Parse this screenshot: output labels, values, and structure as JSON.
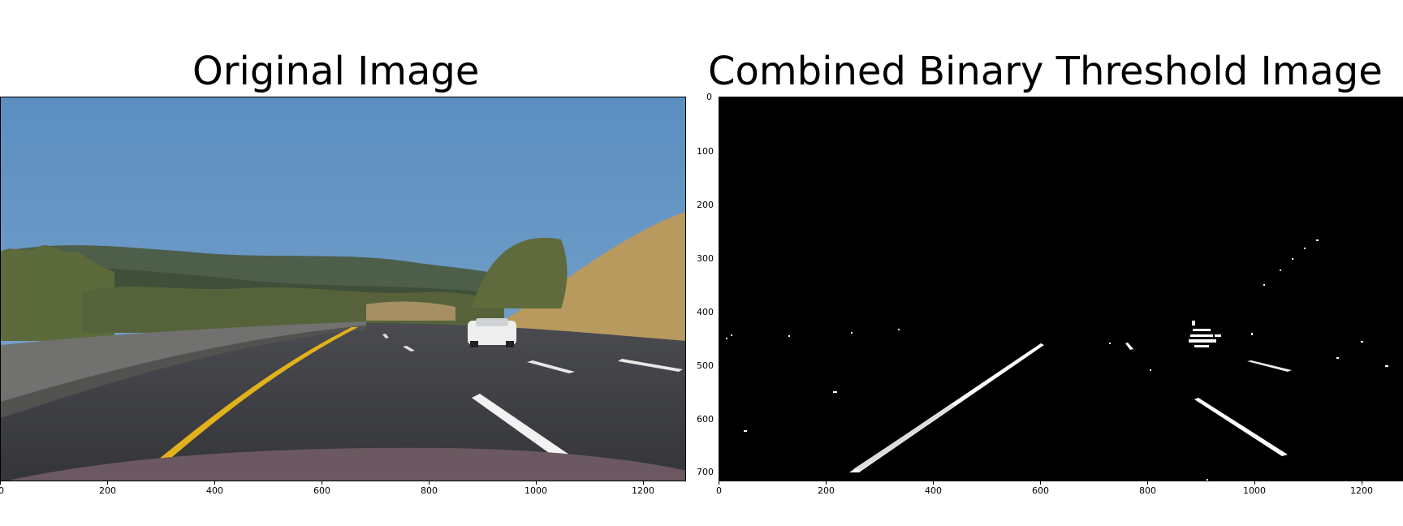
{
  "left": {
    "title": "Original Image",
    "x_ticks": [
      "0",
      "200",
      "400",
      "600",
      "800",
      "1000",
      "1200"
    ]
  },
  "right": {
    "title": "Combined Binary Threshold Image",
    "x_ticks": [
      "0",
      "200",
      "400",
      "600",
      "800",
      "1000",
      "1200"
    ],
    "y_ticks": [
      "0",
      "100",
      "200",
      "300",
      "400",
      "500",
      "600",
      "700"
    ]
  },
  "colors": {
    "sky": "#5d8fbf",
    "hills": "#4a5a42",
    "road": "#3b3c40",
    "lane_yellow": "#e2b21a",
    "lane_white": "#ffffff",
    "grass": "#b8995e",
    "binary_bg": "#000000",
    "binary_fg": "#ffffff"
  }
}
